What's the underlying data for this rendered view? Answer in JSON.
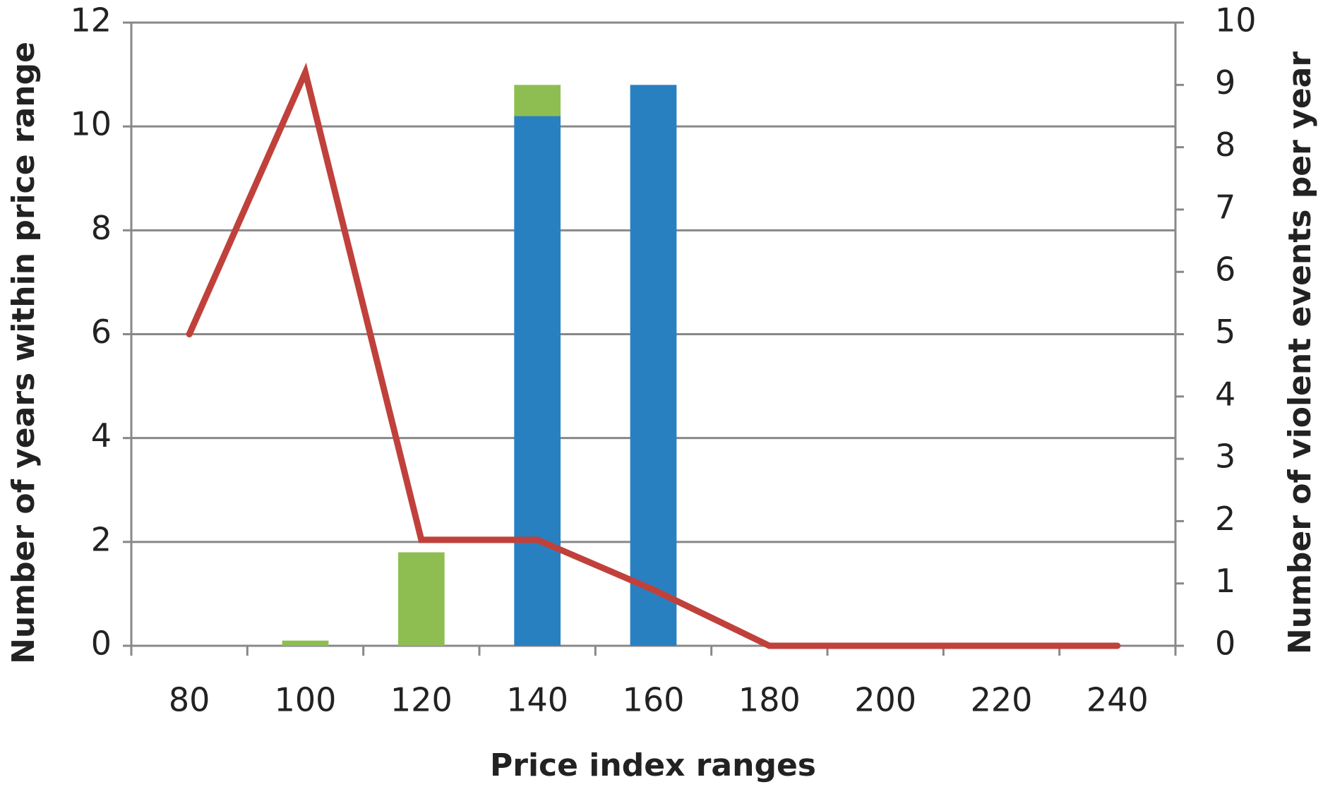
{
  "chart_data": {
    "type": "bar",
    "x_label": "Price index ranges",
    "y_label": "Number of years within price range",
    "y2_label": "Number of violent events per year",
    "categories": [
      "80",
      "100",
      "120",
      "140",
      "160",
      "180",
      "200",
      "220",
      "240"
    ],
    "stacked": true,
    "series": [
      {
        "color": "#2980c1",
        "values": [
          0,
          0,
          0,
          10.2,
          10.8,
          0,
          0,
          0,
          0
        ]
      },
      {
        "color": "#8ebe52",
        "values": [
          0,
          0.1,
          1.8,
          0.6,
          0,
          0,
          0,
          0,
          0
        ]
      },
      {
        "type": "line",
        "axis": "y2",
        "color": "#c0413b",
        "values": [
          5,
          9.2,
          1.7,
          1.7,
          0.9,
          0,
          0,
          0,
          0
        ]
      }
    ],
    "ylim": [
      0,
      12
    ],
    "yticks": [
      0,
      2,
      4,
      6,
      8,
      10,
      12
    ],
    "y2lim": [
      0,
      10
    ],
    "y2ticks": [
      0,
      1,
      2,
      3,
      4,
      5,
      6,
      7,
      8,
      9,
      10
    ],
    "grid": true
  }
}
